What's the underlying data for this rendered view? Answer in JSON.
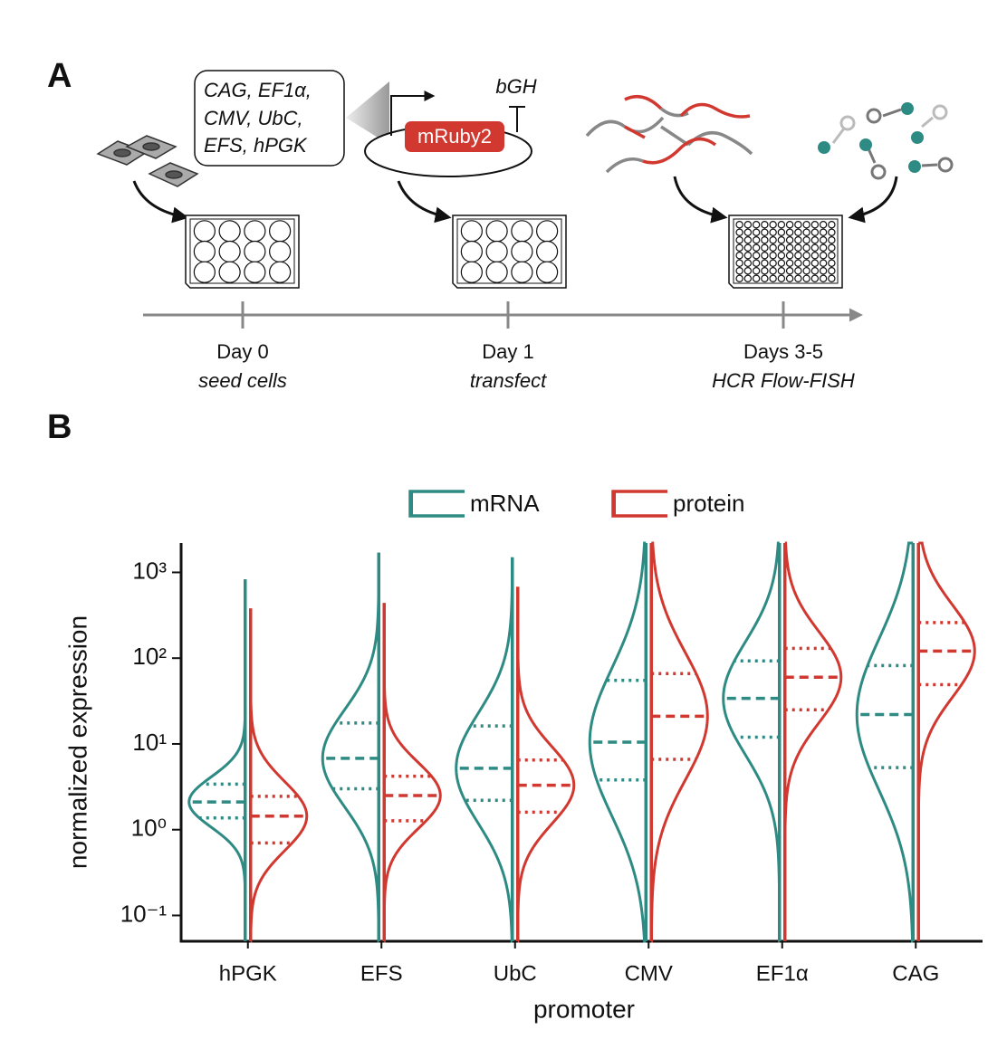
{
  "panel_a": {
    "label": "A",
    "promoter_list": [
      "CAG, EF1α,",
      "CMV, UbC,",
      "EFS, hPGK"
    ],
    "reporter": "mRuby2",
    "terminator": "bGH",
    "timeline": [
      {
        "day": "Day 0",
        "step": "seed cells"
      },
      {
        "day": "Day 1",
        "step": "transfect"
      },
      {
        "day": "Days 3-5",
        "step": "HCR Flow-FISH"
      }
    ]
  },
  "panel_b": {
    "label": "B"
  },
  "chart_data": {
    "type": "violin",
    "xlabel": "promoter",
    "ylabel": "normalized expression",
    "log_y": true,
    "categories": [
      "hPGK",
      "EFS",
      "UbC",
      "CMV",
      "EF1α",
      "CAG"
    ],
    "ylim": [
      0.05,
      2200
    ],
    "yticks": [
      {
        "value": 0.1,
        "label": "10⁻¹"
      },
      {
        "value": 1,
        "label": "10⁰"
      },
      {
        "value": 10,
        "label": "10¹"
      },
      {
        "value": 100,
        "label": "10²"
      },
      {
        "value": 1000,
        "label": "10³"
      }
    ],
    "series": [
      {
        "name": "mRNA",
        "color": "#2e8b84",
        "side": "left",
        "q1": [
          1.37,
          3.0,
          2.2,
          3.8,
          12,
          5.3
        ],
        "median": [
          2.1,
          6.8,
          5.2,
          10.5,
          34,
          22
        ],
        "q3": [
          3.4,
          17.5,
          16.2,
          55,
          93,
          82
        ],
        "max": [
          830,
          1700,
          1500,
          2200,
          2200,
          2200
        ]
      },
      {
        "name": "protein",
        "color": "#d1382f",
        "side": "right",
        "q1": [
          0.7,
          1.27,
          1.6,
          6.6,
          25,
          49
        ],
        "median": [
          1.44,
          2.5,
          3.3,
          21,
          60,
          121
        ],
        "q3": [
          2.45,
          4.2,
          6.5,
          66,
          130,
          260
        ],
        "max": [
          380,
          440,
          680,
          2200,
          2200,
          2200
        ]
      }
    ]
  }
}
